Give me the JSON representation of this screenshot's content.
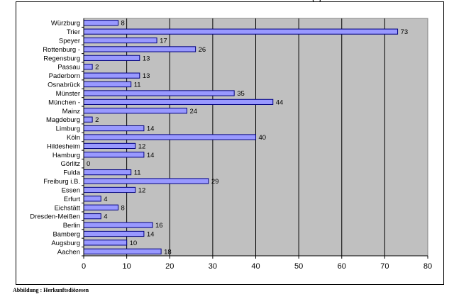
{
  "colors": {
    "plot_background": "#c0c0c0",
    "bar_fill": "#9999ff",
    "bar_stroke": "#000080",
    "grid": "#000000"
  },
  "header": {
    "cut_text": "(          )"
  },
  "caption": "Abbildung : Herkunftsdiözesen",
  "chart_data": {
    "type": "bar",
    "orientation": "horizontal",
    "title": "",
    "xlabel": "",
    "ylabel": "",
    "xlim": [
      0,
      80
    ],
    "xticks": [
      0,
      10,
      20,
      30,
      40,
      50,
      60,
      70,
      80
    ],
    "grid": "vertical",
    "legend": "none",
    "data_labels": true,
    "categories": [
      "Würzburg",
      "Trier",
      "Speyer",
      "Rottenburg -",
      "Regensburg",
      "Passau",
      "Paderborn",
      "Osnabrück",
      "Münster",
      "München -",
      "Mainz",
      "Magdeburg",
      "Limburg",
      "Köln",
      "Hildesheim",
      "Hamburg",
      "Görlitz",
      "Fulda",
      "Freiburg i.B.",
      "Essen",
      "Erfurt",
      "Eichstätt",
      "Dresden-Meißen",
      "Berlin",
      "Bamberg",
      "Augsburg",
      "Aachen"
    ],
    "values": [
      8,
      73,
      17,
      26,
      13,
      2,
      13,
      11,
      35,
      44,
      24,
      2,
      14,
      40,
      12,
      14,
      0,
      11,
      29,
      12,
      4,
      8,
      4,
      16,
      14,
      10,
      18
    ]
  }
}
